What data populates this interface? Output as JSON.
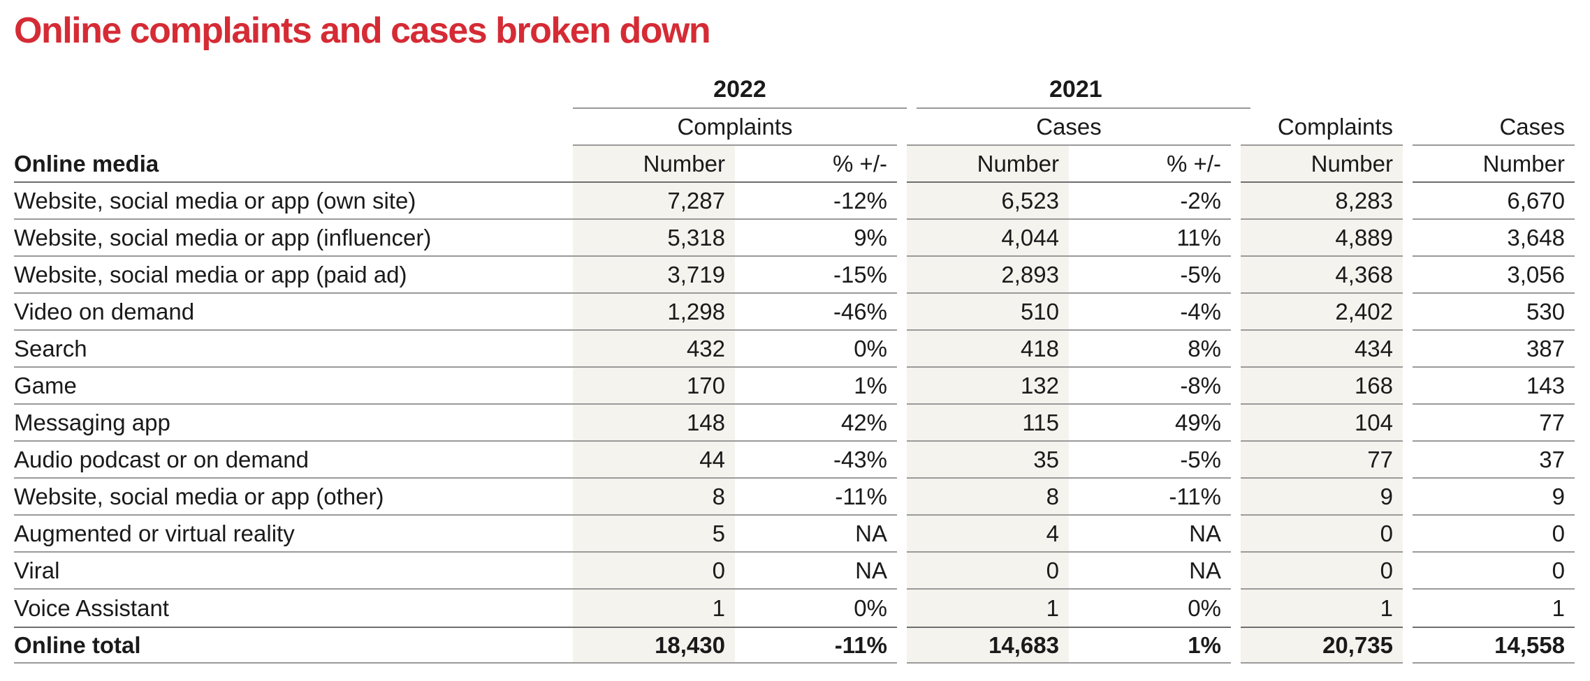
{
  "title": "Online complaints and cases broken down",
  "header": {
    "year_2022": "2022",
    "year_2021": "2021",
    "complaints": "Complaints",
    "cases": "Cases",
    "row_label": "Online media",
    "number": "Number",
    "pct": "% +/-"
  },
  "rows": [
    {
      "label": "Website, social media or app (own site)",
      "c22": "7,287",
      "c22p": "-12%",
      "k22": "6,523",
      "k22p": "-2%",
      "c21": "8,283",
      "k21": "6,670"
    },
    {
      "label": "Website, social media or app (influencer)",
      "c22": "5,318",
      "c22p": "9%",
      "k22": "4,044",
      "k22p": "11%",
      "c21": "4,889",
      "k21": "3,648"
    },
    {
      "label": "Website, social media or app (paid ad)",
      "c22": "3,719",
      "c22p": "-15%",
      "k22": "2,893",
      "k22p": "-5%",
      "c21": "4,368",
      "k21": "3,056"
    },
    {
      "label": "Video on demand",
      "c22": "1,298",
      "c22p": "-46%",
      "k22": "510",
      "k22p": "-4%",
      "c21": "2,402",
      "k21": "530"
    },
    {
      "label": "Search",
      "c22": "432",
      "c22p": "0%",
      "k22": "418",
      "k22p": "8%",
      "c21": "434",
      "k21": "387"
    },
    {
      "label": "Game",
      "c22": "170",
      "c22p": "1%",
      "k22": "132",
      "k22p": "-8%",
      "c21": "168",
      "k21": "143"
    },
    {
      "label": "Messaging app",
      "c22": "148",
      "c22p": "42%",
      "k22": "115",
      "k22p": "49%",
      "c21": "104",
      "k21": "77"
    },
    {
      "label": "Audio podcast or on demand",
      "c22": "44",
      "c22p": "-43%",
      "k22": "35",
      "k22p": "-5%",
      "c21": "77",
      "k21": "37"
    },
    {
      "label": "Website, social media or app (other)",
      "c22": "8",
      "c22p": "-11%",
      "k22": "8",
      "k22p": "-11%",
      "c21": "9",
      "k21": "9"
    },
    {
      "label": "Augmented or virtual reality",
      "c22": "5",
      "c22p": "NA",
      "k22": "4",
      "k22p": "NA",
      "c21": "0",
      "k21": "0"
    },
    {
      "label": "Viral",
      "c22": "0",
      "c22p": "NA",
      "k22": "0",
      "k22p": "NA",
      "c21": "0",
      "k21": "0"
    },
    {
      "label": "Voice Assistant",
      "c22": "1",
      "c22p": "0%",
      "k22": "1",
      "k22p": "0%",
      "c21": "1",
      "k21": "1"
    }
  ],
  "total": {
    "label": "Online total",
    "c22": "18,430",
    "c22p": "-11%",
    "k22": "14,683",
    "k22p": "1%",
    "c21": "20,735",
    "k21": "14,558"
  }
}
